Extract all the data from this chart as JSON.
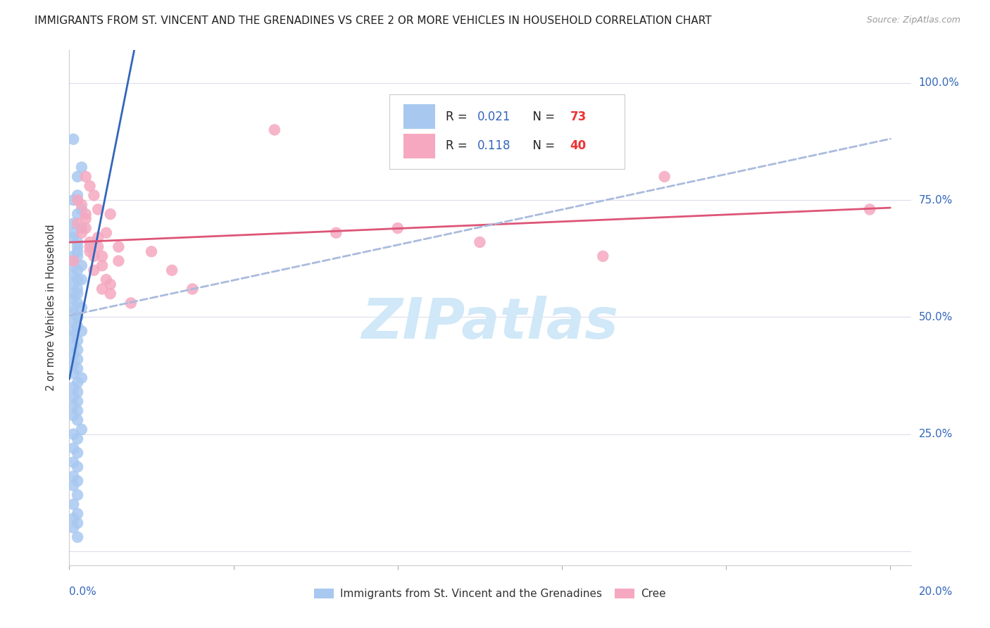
{
  "title": "IMMIGRANTS FROM ST. VINCENT AND THE GRENADINES VS CREE 2 OR MORE VEHICLES IN HOUSEHOLD CORRELATION CHART",
  "source": "Source: ZipAtlas.com",
  "ylabel": "2 or more Vehicles in Household",
  "ytick_labels": [
    "",
    "25.0%",
    "50.0%",
    "75.0%",
    "100.0%"
  ],
  "ytick_positions": [
    0.0,
    0.25,
    0.5,
    0.75,
    1.0
  ],
  "N1": 73,
  "N2": 40,
  "R1": "0.021",
  "R2": "0.118",
  "blue_color": "#a8c8f0",
  "pink_color": "#f5a8c0",
  "blue_line_color": "#3366bb",
  "pink_line_color": "#dd5577",
  "dashed_line_color": "#aabbdd",
  "watermark_color": "#d0e8f8",
  "legend_label_blue": "Immigrants from St. Vincent and the Grenadines",
  "legend_label_pink": "Cree",
  "blue_x": [
    0.001,
    0.002,
    0.001,
    0.003,
    0.002,
    0.001,
    0.002,
    0.003,
    0.001,
    0.002,
    0.001,
    0.002,
    0.003,
    0.001,
    0.002,
    0.001,
    0.002,
    0.001,
    0.002,
    0.001,
    0.002,
    0.001,
    0.003,
    0.002,
    0.001,
    0.002,
    0.003,
    0.001,
    0.002,
    0.001,
    0.002,
    0.003,
    0.001,
    0.002,
    0.001,
    0.002,
    0.001,
    0.002,
    0.003,
    0.001,
    0.002,
    0.001,
    0.002,
    0.001,
    0.002,
    0.001,
    0.002,
    0.003,
    0.001,
    0.002,
    0.001,
    0.002,
    0.001,
    0.002,
    0.001,
    0.002,
    0.003,
    0.001,
    0.002,
    0.001,
    0.002,
    0.001,
    0.002,
    0.001,
    0.002,
    0.001,
    0.002,
    0.001,
    0.002,
    0.001,
    0.002,
    0.001,
    0.002
  ],
  "blue_y": [
    0.88,
    0.8,
    0.75,
    0.82,
    0.76,
    0.7,
    0.72,
    0.73,
    0.68,
    0.65,
    0.67,
    0.64,
    0.69,
    0.63,
    0.66,
    0.61,
    0.63,
    0.59,
    0.6,
    0.57,
    0.58,
    0.55,
    0.61,
    0.56,
    0.54,
    0.55,
    0.58,
    0.52,
    0.53,
    0.51,
    0.5,
    0.52,
    0.49,
    0.5,
    0.47,
    0.48,
    0.46,
    0.45,
    0.47,
    0.44,
    0.43,
    0.42,
    0.41,
    0.4,
    0.39,
    0.38,
    0.36,
    0.37,
    0.35,
    0.34,
    0.33,
    0.32,
    0.31,
    0.3,
    0.29,
    0.28,
    0.26,
    0.25,
    0.24,
    0.22,
    0.21,
    0.19,
    0.18,
    0.16,
    0.15,
    0.14,
    0.12,
    0.1,
    0.08,
    0.07,
    0.06,
    0.05,
    0.03
  ],
  "pink_x": [
    0.001,
    0.002,
    0.003,
    0.004,
    0.005,
    0.006,
    0.007,
    0.003,
    0.004,
    0.005,
    0.002,
    0.004,
    0.005,
    0.006,
    0.007,
    0.008,
    0.009,
    0.01,
    0.006,
    0.007,
    0.005,
    0.008,
    0.009,
    0.004,
    0.01,
    0.012,
    0.008,
    0.015,
    0.01,
    0.012,
    0.02,
    0.025,
    0.03,
    0.05,
    0.065,
    0.08,
    0.1,
    0.13,
    0.145,
    0.195
  ],
  "pink_y": [
    0.62,
    0.7,
    0.68,
    0.72,
    0.65,
    0.63,
    0.67,
    0.74,
    0.71,
    0.66,
    0.75,
    0.69,
    0.64,
    0.76,
    0.73,
    0.61,
    0.68,
    0.72,
    0.6,
    0.65,
    0.78,
    0.63,
    0.58,
    0.8,
    0.55,
    0.62,
    0.56,
    0.53,
    0.57,
    0.65,
    0.64,
    0.6,
    0.56,
    0.9,
    0.68,
    0.69,
    0.66,
    0.63,
    0.8,
    0.73
  ],
  "xlim": [
    0.0,
    0.205
  ],
  "ylim": [
    -0.03,
    1.07
  ]
}
